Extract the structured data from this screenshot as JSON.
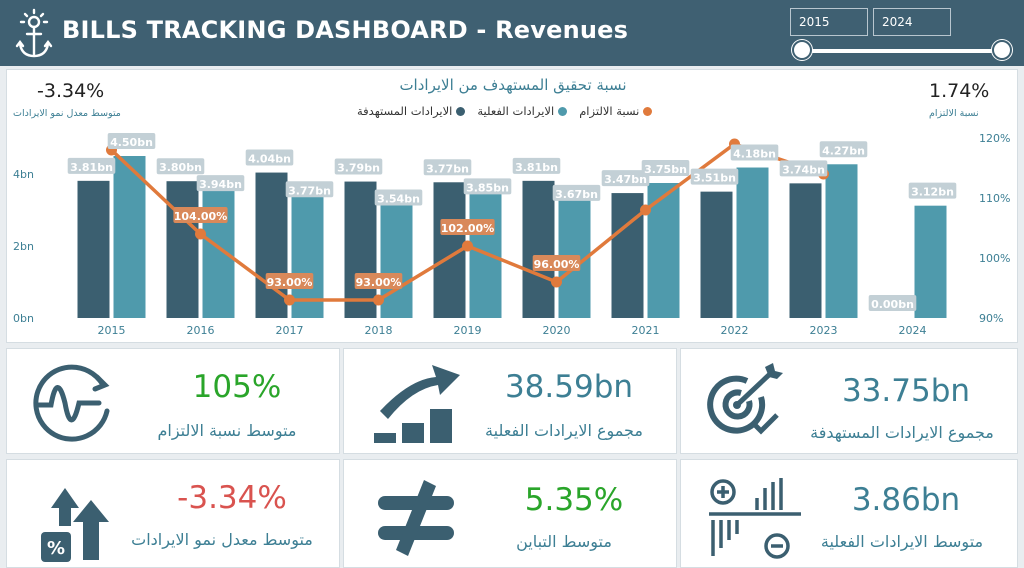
{
  "header": {
    "title": "BILLS TRACKING DASHBOARD - Revenues",
    "year_from": "2015",
    "year_to": "2024"
  },
  "chart": {
    "title": "نسبة تحقيق المستهدف من الايرادات",
    "legend": {
      "target": "الايرادات المستهدفة",
      "actual": "الايرادات الفعلية",
      "commitment": "نسبة الالتزام"
    },
    "left_kpi": {
      "value": "-3.34%",
      "label": "متوسط معدل نمو الايرادات"
    },
    "right_kpi": {
      "value": "1.74%",
      "label": "نسبة الالتزام"
    }
  },
  "chart_data": {
    "type": "bar",
    "categories": [
      "2015",
      "2016",
      "2017",
      "2018",
      "2019",
      "2020",
      "2021",
      "2022",
      "2023",
      "2024"
    ],
    "series": [
      {
        "name": "الايرادات المستهدفة",
        "color": "#3b5f70",
        "values": [
          3.81,
          3.8,
          4.04,
          3.79,
          3.77,
          3.81,
          3.47,
          3.51,
          3.74,
          0.0
        ],
        "labels": [
          "3.81bn",
          "3.80bn",
          "4.04bn",
          "3.79bn",
          "3.77bn",
          "3.81bn",
          "3.47bn",
          "3.51bn",
          "3.74bn",
          "0.00bn"
        ]
      },
      {
        "name": "الايرادات الفعلية",
        "color": "#4f9aac",
        "values": [
          4.5,
          3.94,
          3.77,
          3.54,
          3.85,
          3.67,
          3.75,
          4.18,
          4.27,
          3.12
        ],
        "labels": [
          "4.50bn",
          "3.94bn",
          "3.77bn",
          "3.54bn",
          "3.85bn",
          "3.67bn",
          "3.75bn",
          "4.18bn",
          "4.27bn",
          "3.12bn"
        ]
      },
      {
        "name": "نسبة الالتزام",
        "color": "#e07a3c",
        "type": "line",
        "axis": "right",
        "values": [
          118,
          104,
          93,
          93,
          102,
          96,
          108,
          119,
          114,
          null
        ],
        "labels": [
          "",
          "104.00%",
          "93.00%",
          "93.00%",
          "102.00%",
          "96.00%",
          "",
          "",
          "",
          ""
        ]
      }
    ],
    "y_left": {
      "ticks": [
        "0bn",
        "2bn",
        "4bn"
      ],
      "tick_values": [
        0,
        2,
        4
      ],
      "range": [
        0,
        5
      ]
    },
    "y_right": {
      "ticks": [
        "90%",
        "100%",
        "110%",
        "120%"
      ],
      "tick_values": [
        90,
        100,
        110,
        120
      ],
      "range": [
        90,
        120
      ]
    },
    "grid": false
  },
  "cards": [
    {
      "value": "105%",
      "label": "متوسط نسبة الالتزام",
      "value_color": "#2aa52a",
      "icon": "oscillation-icon"
    },
    {
      "value": "38.59bn",
      "label": "مجموع الايرادات الفعلية",
      "value_color": "#3d7f94",
      "icon": "growth-chart-icon"
    },
    {
      "value": "33.75bn",
      "label": "مجموع الايرادات المستهدفة",
      "value_color": "#3d7f94",
      "icon": "target-icon"
    },
    {
      "value": "-3.34%",
      "label": "متوسط معدل نمو الايرادات",
      "value_color": "#d9534f",
      "icon": "percent-growth-icon"
    },
    {
      "value": "5.35%",
      "label": "متوسط التباين",
      "value_color": "#2aa52a",
      "icon": "not-equal-icon"
    },
    {
      "value": "3.86bn",
      "label": "متوسط الايرادات الفعلية",
      "value_color": "#3d7f94",
      "icon": "plus-minus-bars-icon"
    }
  ]
}
